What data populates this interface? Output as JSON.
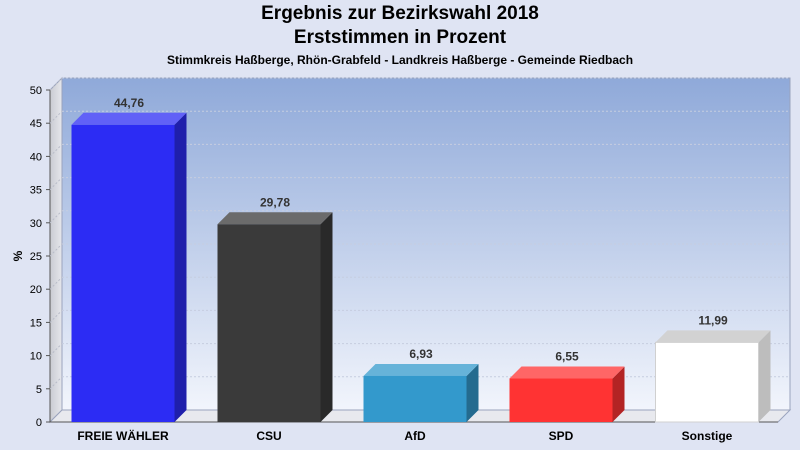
{
  "chart_data": {
    "type": "bar",
    "title": "Ergebnis zur Bezirkswahl 2018",
    "subtitle": "Erststimmen in Prozent",
    "caption": "Stimmkreis Haßberge, Rhön-Grabfeld - Landkreis Haßberge - Gemeinde Riedbach",
    "ylabel": "%",
    "xlabel": "",
    "ylim": [
      0,
      50
    ],
    "yticks": [
      0,
      5,
      10,
      15,
      20,
      25,
      30,
      35,
      40,
      45,
      50
    ],
    "grid": true,
    "categories": [
      "FREIE WÄHLER",
      "CSU",
      "AfD",
      "SPD",
      "Sonstige"
    ],
    "values": [
      44.76,
      29.78,
      6.93,
      6.55,
      11.99
    ],
    "value_labels": [
      "44,76",
      "29,78",
      "6,93",
      "6,55",
      "11,99"
    ],
    "colors": [
      "#2c2cf4",
      "#3a3a3a",
      "#3399cc",
      "#ff3333",
      "#ffffff"
    ]
  }
}
